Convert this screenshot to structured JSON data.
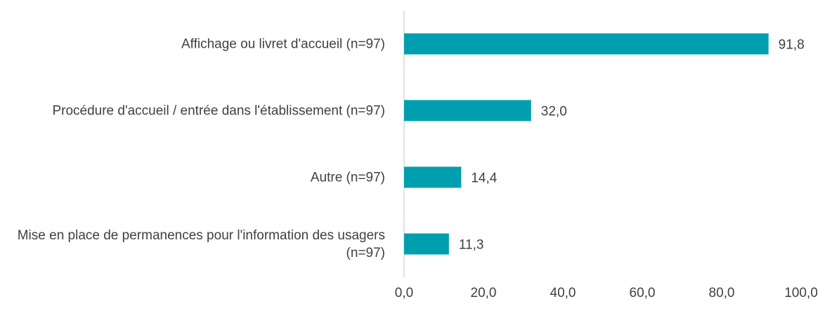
{
  "chart_data": {
    "type": "bar",
    "orientation": "horizontal",
    "categories": [
      "Affichage ou livret d'accueil (n=97)",
      "Procédure d'accueil / entrée dans l'établissement (n=97)",
      "Autre (n=97)",
      "Mise en place de permanences pour l'information des usagers (n=97)"
    ],
    "values": [
      91.8,
      32.0,
      14.4,
      11.3
    ],
    "value_labels": [
      "91,8",
      "32,0",
      "14,4",
      "11,3"
    ],
    "color": "#009faf",
    "xlim": [
      0,
      100
    ],
    "xticks": [
      {
        "value": 0,
        "label": "0,0"
      },
      {
        "value": 20,
        "label": "20,0"
      },
      {
        "value": 40,
        "label": "40,0"
      },
      {
        "value": 60,
        "label": "60,0"
      },
      {
        "value": 80,
        "label": "80,0"
      },
      {
        "value": 100,
        "label": "100,0"
      }
    ],
    "grid": false
  }
}
